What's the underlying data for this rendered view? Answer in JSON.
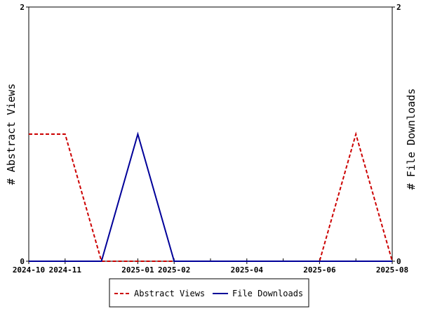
{
  "chart_data": {
    "type": "line",
    "x": [
      "2024-10",
      "2024-11",
      "2024-12",
      "2025-01",
      "2025-02",
      "2025-03",
      "2025-04",
      "2025-05",
      "2025-06",
      "2025-07",
      "2025-08"
    ],
    "x_tick_labels": [
      "2024-10",
      "2024-11",
      "2025-01",
      "2025-02",
      "2025-04",
      "2025-06",
      "2025-08"
    ],
    "series": [
      {
        "name": "Abstract Views",
        "axis": "left",
        "color": "#cc0000",
        "dash": "dashed",
        "values": [
          1,
          1,
          0,
          0,
          0,
          0,
          0,
          0,
          0,
          1,
          0
        ]
      },
      {
        "name": "File Downloads",
        "axis": "right",
        "color": "#000099",
        "dash": "solid",
        "values": [
          0,
          0,
          0,
          1,
          0,
          0,
          0,
          0,
          0,
          0,
          0
        ]
      }
    ],
    "ylabel_left": "# Abstract Views",
    "ylabel_right": "# File Downloads",
    "ylim_left": [
      0,
      2
    ],
    "ylim_right": [
      0,
      2
    ],
    "y_ticks_left": [
      "0",
      "2"
    ],
    "y_ticks_right": [
      "0",
      "2"
    ],
    "legend_position": "bottom-center",
    "grid": false
  }
}
